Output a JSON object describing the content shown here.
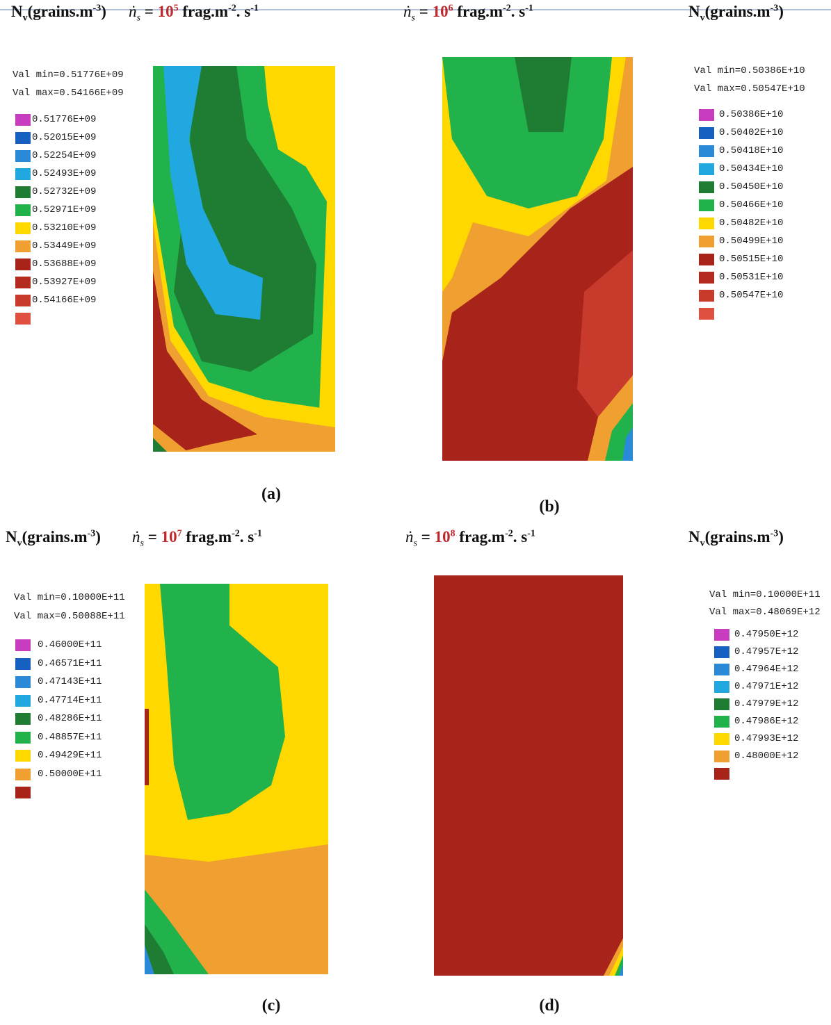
{
  "nv_labels": [
    {
      "main": "N",
      "sub": "v",
      "unit": "(grains.m",
      "unit_exp": "-3",
      "close": ")"
    },
    {
      "main": "N",
      "sub": "v",
      "unit": "(grains.m",
      "unit_exp": "-3",
      "close": ")"
    },
    {
      "main": "N",
      "sub": "v",
      "unit": "(grains.m",
      "unit_exp": "-3",
      "close": ")"
    },
    {
      "main": "N",
      "sub": "v",
      "unit": "(grains.m",
      "unit_exp": "-3",
      "close": ")"
    }
  ],
  "panels": [
    {
      "rate": {
        "symbol": "ṅ",
        "symbol_sub": "s",
        "eq": "=",
        "base": "10",
        "exp": "5",
        "unit": "frag.m",
        "unit_exp": "-2",
        "unit2": ". s",
        "unit2_exp": "-1"
      },
      "caption": "(a)",
      "legend": {
        "val_min": "Val min=0.51776E+09",
        "val_max": "Val max=0.54166E+09",
        "entries": [
          "0.51776E+09",
          "0.52015E+09",
          "0.52254E+09",
          "0.52493E+09",
          "0.52732E+09",
          "0.52971E+09",
          "0.53210E+09",
          "0.53449E+09",
          "0.53688E+09",
          "0.53927E+09",
          "0.54166E+09"
        ]
      }
    },
    {
      "rate": {
        "symbol": "ṅ",
        "symbol_sub": "s",
        "eq": "=",
        "base": "10",
        "exp": "6",
        "unit": "frag.m",
        "unit_exp": "-2",
        "unit2": ". s",
        "unit2_exp": "-1"
      },
      "caption": "(b)",
      "legend": {
        "val_min": "Val min=0.50386E+10",
        "val_max": "Val max=0.50547E+10",
        "entries": [
          "0.50386E+10",
          "0.50402E+10",
          "0.50418E+10",
          "0.50434E+10",
          "0.50450E+10",
          "0.50466E+10",
          "0.50482E+10",
          "0.50499E+10",
          "0.50515E+10",
          "0.50531E+10",
          "0.50547E+10"
        ]
      }
    },
    {
      "rate": {
        "symbol": "ṅ",
        "symbol_sub": "s",
        "eq": "=",
        "base": "10",
        "exp": "7",
        "unit": "frag.m",
        "unit_exp": "-2",
        "unit2": ". s",
        "unit2_exp": "-1"
      },
      "caption": "(c)",
      "legend": {
        "val_min": "Val min=0.10000E+11",
        "val_max": "Val max=0.50088E+11",
        "entries": [
          "0.46000E+11",
          "0.46571E+11",
          "0.47143E+11",
          "0.47714E+11",
          "0.48286E+11",
          "0.48857E+11",
          "0.49429E+11",
          "0.50000E+11"
        ]
      }
    },
    {
      "rate": {
        "symbol": "ṅ",
        "symbol_sub": "s",
        "eq": "=",
        "base": "10",
        "exp": "8",
        "unit": "frag.m",
        "unit_exp": "-2",
        "unit2": ". s",
        "unit2_exp": "-1"
      },
      "caption": "(d)",
      "legend": {
        "val_min": "Val min=0.10000E+11",
        "val_max": "Val max=0.48069E+12",
        "entries": [
          "0.47950E+12",
          "0.47957E+12",
          "0.47964E+12",
          "0.47971E+12",
          "0.47979E+12",
          "0.47986E+12",
          "0.47993E+12",
          "0.48000E+12"
        ]
      }
    }
  ]
}
